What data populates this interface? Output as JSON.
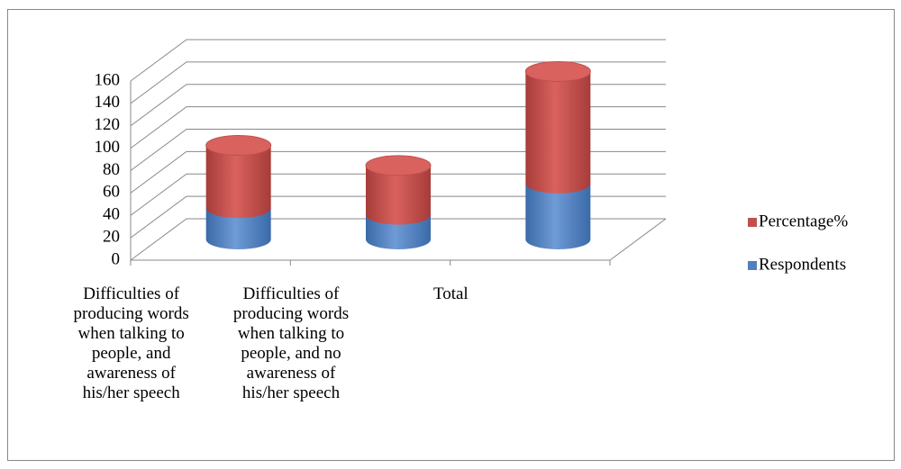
{
  "chart_data": {
    "type": "bar3d_stacked_cylinder",
    "categories": [
      "Difficulties of producing words when talking to people, and awareness of his/her speech",
      "Difficulties of producing words when talking to people, and no awareness of his/her speech",
      "Total"
    ],
    "series": [
      {
        "name": "Respondents",
        "color": "#4f81bd",
        "values": [
          28,
          22,
          50
        ]
      },
      {
        "name": "Percentage%",
        "color": "#c0504d",
        "values": [
          56,
          44,
          100
        ]
      }
    ],
    "ylim": [
      0,
      160
    ],
    "yticks": [
      0,
      20,
      40,
      60,
      80,
      100,
      120,
      140,
      160
    ],
    "grid": true,
    "legend": "right"
  }
}
